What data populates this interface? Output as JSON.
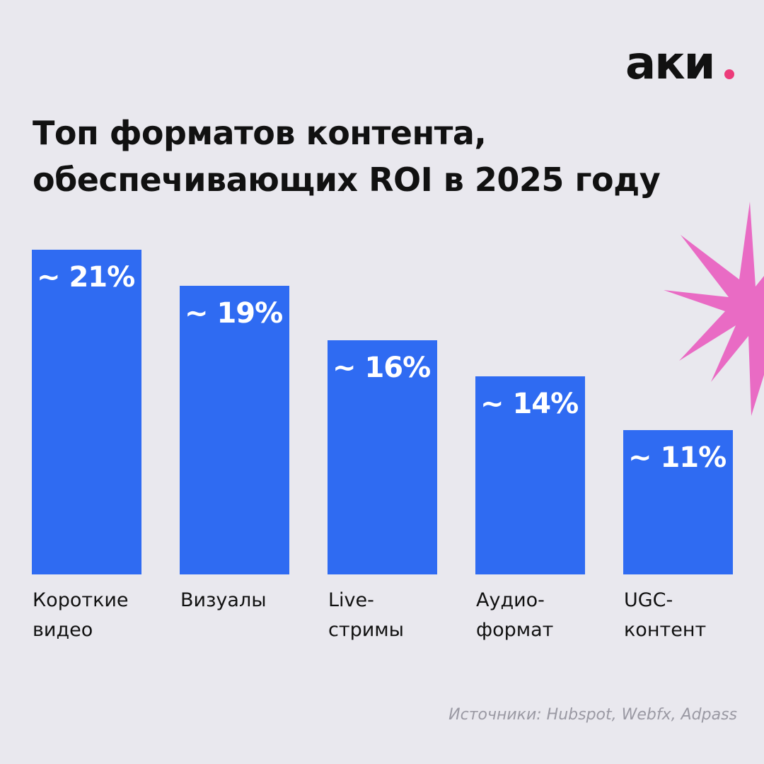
{
  "logo": "аки",
  "chart_data": {
    "type": "bar",
    "title": "Топ форматов контента, обеспечивающих ROI в 2025 году",
    "categories": [
      "Короткие видео",
      "Визуалы",
      "Live-стримы",
      "Аудио-формат",
      "UGC-контент"
    ],
    "values": [
      21,
      19,
      16,
      14,
      11
    ],
    "value_labels": [
      "~ 21%",
      "~ 19%",
      "~ 16%",
      "~ 14%",
      "~ 11%"
    ],
    "color": "#2f6bf2",
    "ylim": [
      3,
      21
    ],
    "source": "Источники: Hubspot, Webfx, Adpass"
  }
}
